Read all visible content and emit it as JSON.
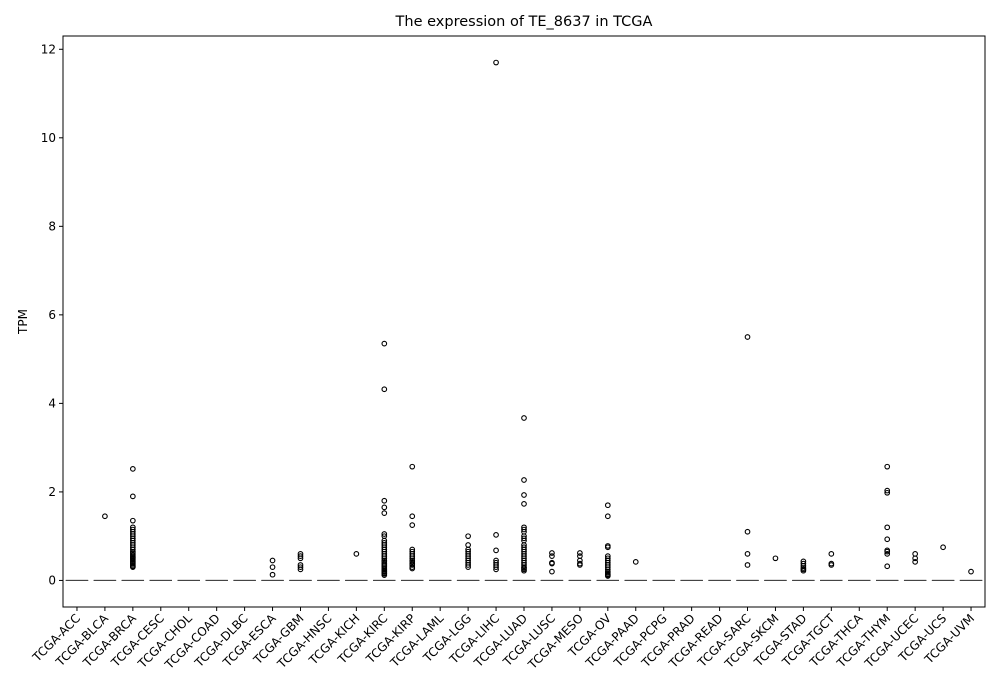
{
  "chart_data": {
    "type": "box",
    "title": "The expression of TE_8637 in TCGA",
    "xlabel": "",
    "ylabel": "TPM",
    "ylim": [
      -0.6,
      12.3
    ],
    "yticks": [
      0,
      2,
      4,
      6,
      8,
      10,
      12
    ],
    "grid": false,
    "legend": "none",
    "colors": {
      "box": "#ffffff",
      "edge": "#000000",
      "median": "#444444"
    },
    "categories": [
      "TCGA-ACC",
      "TCGA-BLCA",
      "TCGA-BRCA",
      "TCGA-CESC",
      "TCGA-CHOL",
      "TCGA-COAD",
      "TCGA-DLBC",
      "TCGA-ESCA",
      "TCGA-GBM",
      "TCGA-HNSC",
      "TCGA-KICH",
      "TCGA-KIRC",
      "TCGA-KIRP",
      "TCGA-LAML",
      "TCGA-LGG",
      "TCGA-LIHC",
      "TCGA-LUAD",
      "TCGA-LUSC",
      "TCGA-MESO",
      "TCGA-OV",
      "TCGA-PAAD",
      "TCGA-PCPG",
      "TCGA-PRAD",
      "TCGA-READ",
      "TCGA-SARC",
      "TCGA-SKCM",
      "TCGA-STAD",
      "TCGA-TGCT",
      "TCGA-THCA",
      "TCGA-THYM",
      "TCGA-UCEC",
      "TCGA-UCS",
      "TCGA-UVM"
    ],
    "median": [
      0,
      0,
      0,
      0,
      0,
      0,
      0,
      0,
      0,
      0,
      0,
      0,
      0,
      0,
      0,
      0,
      0,
      0,
      0,
      0,
      0,
      0,
      0,
      0,
      0,
      0,
      0,
      0,
      0,
      0,
      0,
      0,
      0
    ],
    "outliers": [
      [],
      [
        1.45
      ],
      [
        2.52,
        1.9,
        1.35,
        1.2,
        1.15,
        1.1,
        1.05,
        1.0,
        0.95,
        0.9,
        0.85,
        0.8,
        0.75,
        0.7,
        0.65,
        0.62,
        0.58,
        0.55,
        0.52,
        0.5,
        0.47,
        0.44,
        0.41,
        0.38,
        0.35,
        0.32,
        0.3
      ],
      [],
      [],
      [],
      [],
      [
        0.45,
        0.3,
        0.13
      ],
      [
        0.6,
        0.55,
        0.5,
        0.35,
        0.3,
        0.25
      ],
      [],
      [
        0.6
      ],
      [
        5.35,
        4.32,
        1.8,
        1.65,
        1.52,
        1.05,
        1.0,
        0.9,
        0.85,
        0.8,
        0.75,
        0.7,
        0.65,
        0.6,
        0.55,
        0.5,
        0.45,
        0.42,
        0.38,
        0.35,
        0.32,
        0.28,
        0.25,
        0.22,
        0.2,
        0.17,
        0.15,
        0.12
      ],
      [
        2.57,
        1.45,
        1.25,
        0.7,
        0.65,
        0.6,
        0.55,
        0.5,
        0.45,
        0.42,
        0.38,
        0.35,
        0.3,
        0.27
      ],
      [],
      [
        1.0,
        0.8,
        0.7,
        0.65,
        0.6,
        0.55,
        0.5,
        0.45,
        0.4,
        0.35,
        0.3
      ],
      [
        11.7,
        1.03,
        0.68,
        0.45,
        0.4,
        0.35,
        0.3,
        0.25
      ],
      [
        3.67,
        2.27,
        1.93,
        1.73,
        1.2,
        1.15,
        1.1,
        1.0,
        0.95,
        0.9,
        0.8,
        0.75,
        0.7,
        0.65,
        0.6,
        0.55,
        0.5,
        0.45,
        0.4,
        0.35,
        0.3,
        0.28,
        0.25,
        0.22
      ],
      [
        0.62,
        0.55,
        0.4,
        0.38,
        0.2
      ],
      [
        0.62,
        0.55,
        0.45,
        0.38,
        0.35
      ],
      [
        1.7,
        1.45,
        0.78,
        0.75,
        0.55,
        0.5,
        0.45,
        0.4,
        0.35,
        0.3,
        0.25,
        0.2,
        0.17,
        0.14,
        0.12,
        0.1
      ],
      [
        0.42
      ],
      [],
      [],
      [],
      [
        5.5,
        1.1,
        0.6,
        0.35
      ],
      [
        0.5
      ],
      [
        0.43,
        0.38,
        0.33,
        0.28,
        0.25,
        0.22
      ],
      [
        0.6,
        0.38,
        0.35
      ],
      [],
      [
        2.57,
        2.03,
        1.98,
        1.2,
        0.93,
        0.68,
        0.65,
        0.6,
        0.32
      ],
      [
        0.6,
        0.5,
        0.42
      ],
      [
        0.75
      ],
      [
        0.2
      ]
    ]
  }
}
